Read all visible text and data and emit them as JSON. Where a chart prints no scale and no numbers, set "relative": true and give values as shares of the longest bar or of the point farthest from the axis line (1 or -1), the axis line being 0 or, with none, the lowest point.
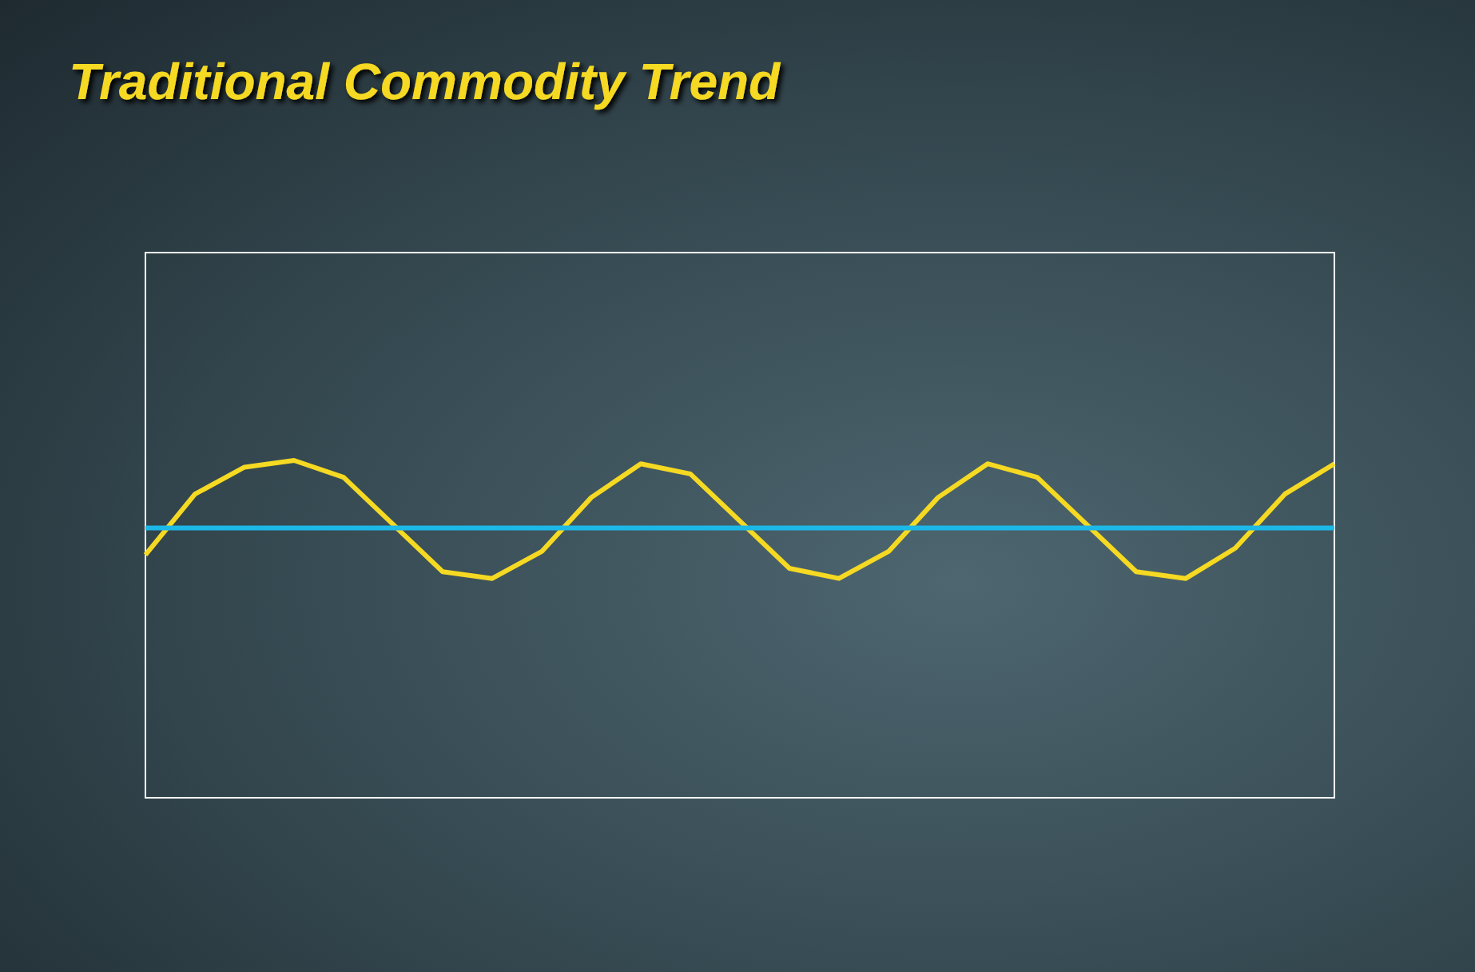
{
  "chart_data": {
    "type": "line",
    "title": "Traditional Commodity Trend",
    "relative": true,
    "categories": [
      null,
      null,
      null,
      null,
      null,
      null,
      null,
      null,
      null,
      null,
      null,
      null,
      null,
      null,
      null,
      null,
      null,
      null,
      null,
      null,
      null,
      null,
      null,
      null,
      null
    ],
    "series": [
      {
        "color": "#f5d922",
        "values": [
          0.72,
          0.9,
          0.98,
          1.0,
          0.95,
          0.81,
          0.67,
          0.65,
          0.73,
          0.89,
          0.99,
          0.96,
          0.82,
          0.68,
          0.65,
          0.73,
          0.89,
          0.99,
          0.95,
          0.81,
          0.67,
          0.65,
          0.74,
          0.9,
          0.99
        ]
      },
      {
        "color": "#1cb8e8",
        "values": [
          0.8,
          0.8,
          0.8,
          0.8,
          0.8,
          0.8,
          0.8,
          0.8,
          0.8,
          0.8,
          0.8,
          0.8,
          0.8,
          0.8,
          0.8,
          0.8,
          0.8,
          0.8,
          0.8,
          0.8,
          0.8,
          0.8,
          0.8,
          0.8,
          0.8
        ]
      }
    ]
  }
}
